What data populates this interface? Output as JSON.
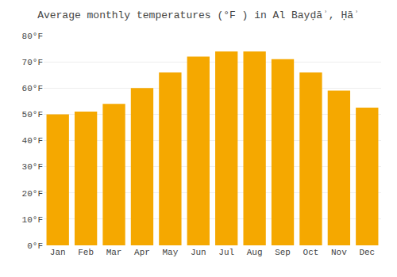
{
  "chart_data": {
    "type": "bar",
    "title": "Average monthly temperatures (°F ) in Al Bayḍāʾ, Ḥāʾ",
    "categories": [
      "Jan",
      "Feb",
      "Mar",
      "Apr",
      "May",
      "Jun",
      "Jul",
      "Aug",
      "Sep",
      "Oct",
      "Nov",
      "Dec"
    ],
    "values": [
      50,
      51,
      54,
      60,
      66,
      72,
      74,
      74,
      71,
      66,
      59,
      52.5
    ],
    "color": "#F5A800",
    "ylim": [
      0,
      80
    ],
    "yticks": [
      {
        "value": 0,
        "label": "0°F"
      },
      {
        "value": 10,
        "label": "10°F"
      },
      {
        "value": 20,
        "label": "20°F"
      },
      {
        "value": 30,
        "label": "30°F"
      },
      {
        "value": 40,
        "label": "40°F"
      },
      {
        "value": 50,
        "label": "50°F"
      },
      {
        "value": 60,
        "label": "60°F"
      },
      {
        "value": 70,
        "label": "70°F"
      },
      {
        "value": 80,
        "label": "80°F"
      }
    ],
    "grid": true
  }
}
